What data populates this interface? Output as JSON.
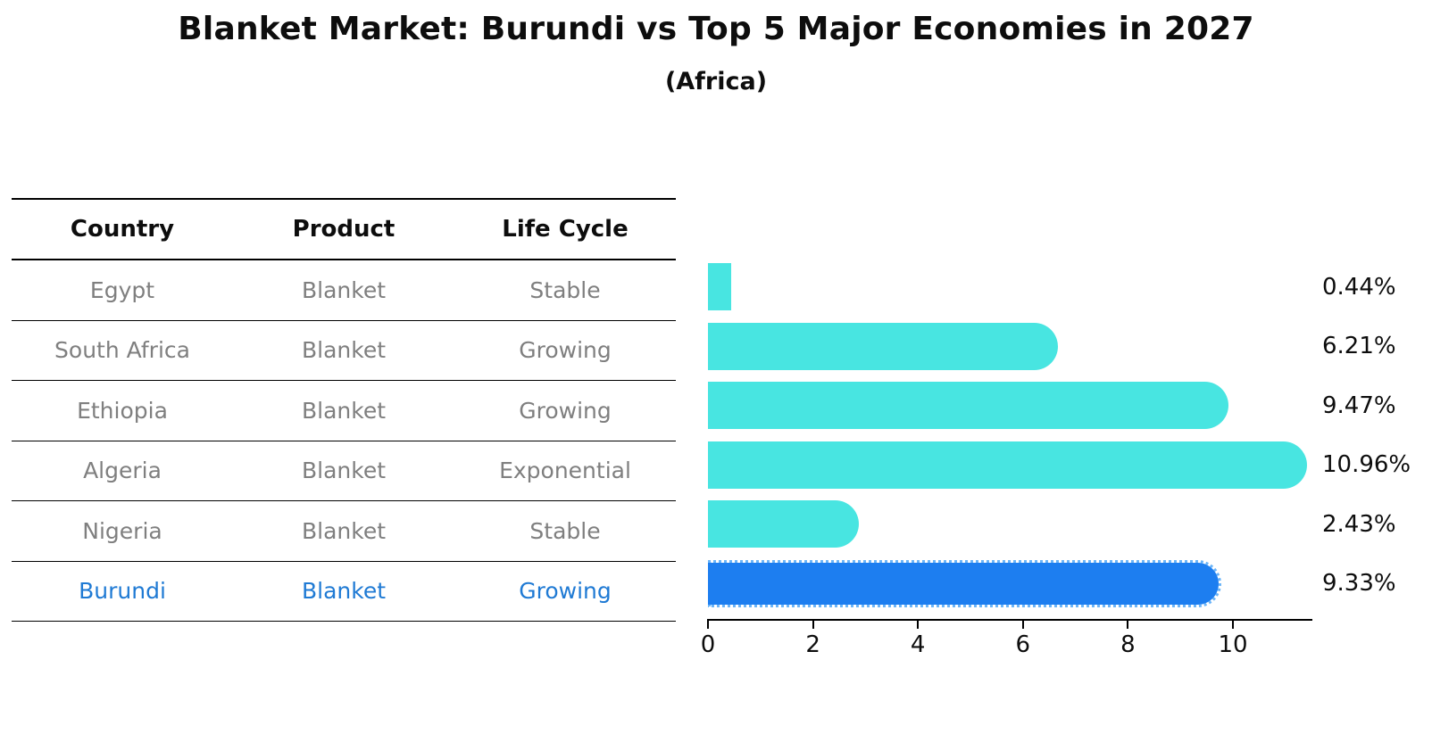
{
  "title": "Blanket Market: Burundi vs Top 5 Major Economies in 2027",
  "subtitle": "(Africa)",
  "table": {
    "headers": [
      "Country",
      "Product",
      "Life Cycle"
    ],
    "rows": [
      {
        "country": "Egypt",
        "product": "Blanket",
        "life_cycle": "Stable",
        "highlight": false
      },
      {
        "country": "South Africa",
        "product": "Blanket",
        "life_cycle": "Growing",
        "highlight": false
      },
      {
        "country": "Ethiopia",
        "product": "Blanket",
        "life_cycle": "Growing",
        "highlight": false
      },
      {
        "country": "Algeria",
        "product": "Blanket",
        "life_cycle": "Exponential",
        "highlight": false
      },
      {
        "country": "Nigeria",
        "product": "Blanket",
        "life_cycle": "Stable",
        "highlight": true
      },
      {
        "country": "Burundi",
        "product": "Blanket",
        "life_cycle": "Growing",
        "highlight": true
      }
    ]
  },
  "chart_data": {
    "type": "bar",
    "orientation": "horizontal",
    "title": "Blanket Market: Burundi vs Top 5 Major Economies in 2027",
    "subtitle": "(Africa)",
    "categories": [
      "Egypt",
      "South Africa",
      "Ethiopia",
      "Algeria",
      "Nigeria",
      "Burundi"
    ],
    "values": [
      0.44,
      6.21,
      9.47,
      10.96,
      2.43,
      9.33
    ],
    "bar_labels": [
      "0.44%",
      "6.21%",
      "9.47%",
      "10.96%",
      "2.43%",
      "9.33%"
    ],
    "x_ticks": [
      0,
      2,
      4,
      6,
      8,
      10
    ],
    "xlim": [
      0,
      11.5
    ],
    "xlabel": "",
    "ylabel": "",
    "grid": false,
    "legend": "none",
    "bar_color": "#48e5e1",
    "highlight_index": 5,
    "highlight_category": "Burundi",
    "highlight_color": "#1d7ef0",
    "highlight_style": "dotted-outline",
    "label_color": "#0d0d0d"
  },
  "colors": {
    "bar_cyan": "#48e5e1",
    "bar_blue": "#1d7ef0",
    "table_text_gray": "#7f7f7f",
    "table_text_blue": "#1f7ad4",
    "axis_black": "#000000"
  }
}
